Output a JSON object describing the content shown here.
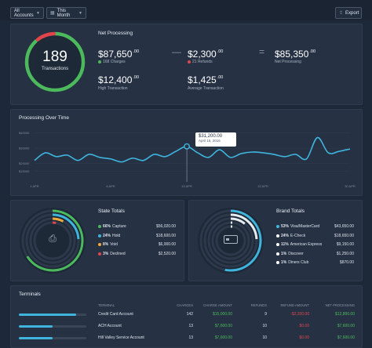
{
  "toolbar": {
    "accounts_label": "All Accounts",
    "period_label": "This Month",
    "export_label": "Export"
  },
  "net_processing": {
    "title": "Net Processing",
    "transactions_count": "189",
    "transactions_label": "Transactions",
    "gross": {
      "value": "$87,650",
      "cents": ".00",
      "sub": "168 Charges"
    },
    "refunds": {
      "value": "$2,300",
      "cents": ".00",
      "sub": "21 Refunds"
    },
    "net": {
      "value": "$85,350",
      "cents": ".00",
      "sub": "Net Processing"
    },
    "high": {
      "value": "$12,400",
      "cents": ".00",
      "sub": "High Transaction"
    },
    "average": {
      "value": "$1,425",
      "cents": ".00",
      "sub": "Average Transaction"
    },
    "ring_fraction": 0.88,
    "ring_color": "#4cba5c",
    "ring_refund_color": "#e0454b"
  },
  "processing_chart": {
    "title": "Processing Over Time",
    "tooltip": {
      "value": "$31,200.00",
      "date": "April 15, 2016"
    }
  },
  "chart_data": {
    "type": "line",
    "title": "Processing Over Time",
    "ylim": [
      10000,
      45000
    ],
    "y_ticks": [
      "$40000",
      "$30000",
      "$20000",
      "$15000"
    ],
    "x_ticks": [
      "1 APR",
      "8 APR",
      "15 APR",
      "22 APR",
      "30 APR"
    ],
    "x": [
      1,
      2,
      3,
      4,
      5,
      6,
      7,
      8,
      9,
      10,
      11,
      12,
      13,
      14,
      15,
      16,
      17,
      18,
      19,
      20,
      21,
      22,
      23,
      24,
      25,
      26,
      27,
      28,
      29,
      30
    ],
    "values": [
      22000,
      27000,
      24500,
      25500,
      22000,
      26000,
      24000,
      23000,
      21000,
      23500,
      22000,
      26000,
      24500,
      28000,
      31200,
      27000,
      24000,
      29000,
      24000,
      26500,
      27500,
      27000,
      26000,
      24500,
      26000,
      23000,
      37000,
      27000,
      28000,
      29500
    ],
    "color": "#3fb4dd",
    "highlight": {
      "x": 15,
      "value": 31200
    }
  },
  "state_totals": {
    "title": "State Totals",
    "items": [
      {
        "pct": "66%",
        "label": "Capture",
        "amount": "$56,020.00",
        "color": "#4cba5c",
        "fraction": 0.66
      },
      {
        "pct": "24%",
        "label": "Hold",
        "amount": "$18,600.00",
        "color": "#3fb4dd",
        "fraction": 0.24
      },
      {
        "pct": "8%",
        "label": "Void",
        "amount": "$6,000.00",
        "color": "#f0a93a",
        "fraction": 0.08
      },
      {
        "pct": "3%",
        "label": "Declined",
        "amount": "$2,520.00",
        "color": "#e0454b",
        "fraction": 0.03
      }
    ]
  },
  "brand_totals": {
    "title": "Brand Totals",
    "items": [
      {
        "pct": "53%",
        "label": "Visa/MasterCard",
        "amount": "$43,650.00",
        "color": "#3fb4dd",
        "fraction": 0.53
      },
      {
        "pct": "24%",
        "label": "E-Check",
        "amount": "$18,650.00",
        "color": "#ffffff",
        "fraction": 0.24
      },
      {
        "pct": "11%",
        "label": "American Express",
        "amount": "$9,150.00",
        "color": "#ffffff",
        "fraction": 0.11
      },
      {
        "pct": "1%",
        "label": "Discover",
        "amount": "$1,250.00",
        "color": "#ffffff",
        "fraction": 0.01
      },
      {
        "pct": "1%",
        "label": "Diners Club",
        "amount": "$870.00",
        "color": "#ffffff",
        "fraction": 0.01
      }
    ]
  },
  "terminals": {
    "title": "Terminals",
    "columns": [
      "Terminal",
      "Charges",
      "Charge Amount",
      "Refunds",
      "Refund Amount",
      "Net Processing"
    ],
    "rows": [
      {
        "name": "Credit Card Account",
        "charges": "142",
        "charge_amount": "$15,000.00",
        "refunds": "9",
        "refund_amount": "-$2,200.00",
        "net": "$12,800.00",
        "fraction": 0.85
      },
      {
        "name": "ACH Account",
        "charges": "13",
        "charge_amount": "$7,600.00",
        "refunds": "10",
        "refund_amount": "$0.00",
        "net": "$7,600.00",
        "fraction": 0.5
      },
      {
        "name": "Hill Valley Service Account",
        "charges": "13",
        "charge_amount": "$7,600.00",
        "refunds": "10",
        "refund_amount": "$0.00",
        "net": "$7,600.00",
        "fraction": 0.5
      }
    ]
  }
}
